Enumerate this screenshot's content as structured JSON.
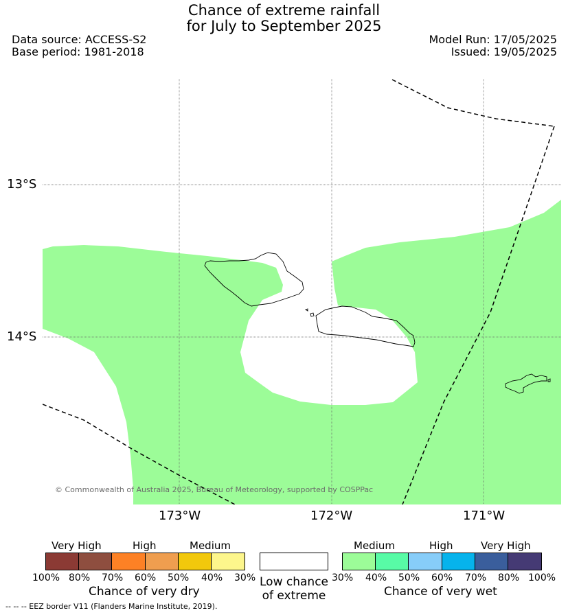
{
  "title": {
    "line1": "Chance of extreme rainfall",
    "line2": "for July to September 2025"
  },
  "meta": {
    "data_source": "Data source: ACCESS-S2",
    "base_period": "Base period: 1981-2018",
    "model_run": "Model Run: 17/05/2025",
    "issued": "Issued: 19/05/2025"
  },
  "map": {
    "lat_labels": [
      "13°S",
      "14°S"
    ],
    "lon_labels": [
      "173°W",
      "172°W",
      "171°W"
    ],
    "credit": "© Commonwealth of Australia 2025, Bureau of Meteorology, supported by COSPPac",
    "region_colors": {
      "medium_wet": "#9cfc98",
      "low": "#ffffff"
    },
    "eez_line_style": "dashed"
  },
  "legend": {
    "dry": {
      "group_labels": [
        "Very High",
        "High",
        "Medium"
      ],
      "colors": [
        "#8b3a34",
        "#8e4e3f",
        "#fd8125",
        "#ef9e4f",
        "#f2c80c",
        "#fdf68c"
      ],
      "ticks": [
        "100%",
        "80%",
        "70%",
        "60%",
        "50%",
        "40%",
        "30%"
      ],
      "caption": "Chance of very dry"
    },
    "low": {
      "color": "#ffffff",
      "caption_line1": "Low chance",
      "caption_line2": "of extreme"
    },
    "wet": {
      "group_labels": [
        "Medium",
        "High",
        "Very High"
      ],
      "colors": [
        "#9cfc98",
        "#58fba6",
        "#87cdf9",
        "#06b3ec",
        "#3a5e9c",
        "#453a74"
      ],
      "ticks": [
        "30%",
        "40%",
        "50%",
        "60%",
        "70%",
        "80%",
        "100%"
      ],
      "caption": "Chance of very wet"
    },
    "eez_note": "--  --  -- EEZ border V11 (Flanders Marine Institute, 2019)."
  }
}
